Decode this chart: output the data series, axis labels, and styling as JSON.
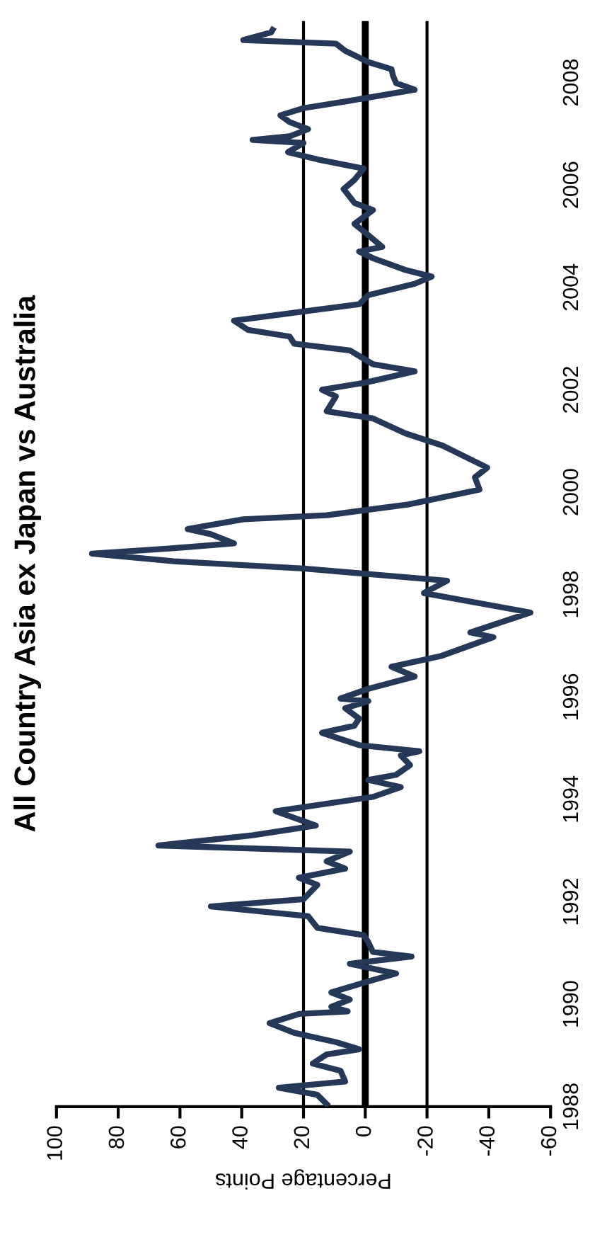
{
  "chart_data": {
    "type": "line",
    "title": "All Country Asia ex Japan vs Australia",
    "xlabel": "Percentage Points",
    "ylim": [
      1988,
      2009.2
    ],
    "yticks": [
      1988,
      1990,
      1992,
      1994,
      1996,
      1998,
      2000,
      2002,
      2004,
      2006,
      2008
    ],
    "xlim": [
      100,
      -60
    ],
    "xticks": [
      100,
      80,
      60,
      40,
      20,
      0,
      -20,
      -40,
      -60
    ],
    "grid": false,
    "marker": "none",
    "line_style": "solid",
    "ref_lines": [
      {
        "axis": "x",
        "value": 20,
        "color": "#000000"
      },
      {
        "axis": "x",
        "value": 0,
        "color": "#000000"
      },
      {
        "axis": "x",
        "value": -20,
        "color": "#000000"
      }
    ],
    "series": [
      {
        "color": "#253858",
        "values": [
          1988.05,
          1988.23,
          1988.37,
          1988.49,
          1988.7,
          1988.84,
          1989.02,
          1989.12,
          1989.26,
          1989.44,
          1989.63,
          1989.81,
          1989.86,
          1989.95,
          1990.09,
          1990.23,
          1990.42,
          1990.6,
          1990.79,
          1990.93,
          1991.02,
          1991.21,
          1991.35,
          1991.49,
          1991.72,
          1991.91,
          1992.05,
          1992.33,
          1992.47,
          1992.65,
          1992.79,
          1992.98,
          1993.1,
          1993.3,
          1993.49,
          1993.77,
          1994.05,
          1994.24,
          1994.38,
          1994.48,
          1994.67,
          1994.86,
          1994.94,
          1995.06,
          1995.3,
          1995.44,
          1995.58,
          1995.78,
          1995.92,
          1995.97,
          1996.16,
          1996.4,
          1996.59,
          1996.8,
          1997.17,
          1997.26,
          1997.65,
          1998.03,
          1998.27,
          1998.51,
          1998.65,
          1998.8,
          1998.9,
          1999.0,
          1999.18,
          1999.28,
          1999.47,
          1999.55,
          1999.76,
          2000.05,
          2000.29,
          2000.48,
          2000.91,
          2001.15,
          2001.44,
          2001.58,
          2001.87,
          2002.0,
          2002.14,
          2002.36,
          2002.5,
          2002.77,
          2002.9,
          2003.04,
          2003.17,
          2003.35,
          2003.53,
          2003.67,
          2003.85,
          2004.07,
          2004.21,
          2004.34,
          2004.57,
          2004.7,
          2004.79,
          2005.02,
          2005.24,
          2005.51,
          2005.65,
          2005.92,
          2006.1,
          2006.32,
          2006.5,
          2006.64,
          2006.82,
          2006.88,
          2006.95,
          2007.09,
          2007.23,
          2007.36,
          2007.5,
          2007.63,
          2007.86,
          2007.99,
          2008.13,
          2008.26,
          2008.4,
          2008.62,
          2008.76,
          2008.83,
          2008.98,
          2009.03
        ],
        "x": [
          12.5,
          15.5,
          28,
          6.5,
          8,
          17,
          12.5,
          2,
          9.5,
          23,
          31,
          21.5,
          5.7,
          11,
          5,
          11,
          0.5,
          -10,
          5,
          -15,
          -2.5,
          -1,
          0.5,
          15.5,
          18.5,
          50,
          20,
          15.5,
          21.5,
          6.5,
          12.5,
          5,
          67,
          36.5,
          16,
          29,
          -2.5,
          -11.5,
          -1,
          -10,
          -14.5,
          -11.5,
          -17.5,
          2,
          14,
          3.5,
          2,
          6.5,
          -1,
          8,
          -1,
          -16,
          -8.5,
          -24.5,
          -41.5,
          -34,
          -53.5,
          -19,
          -26.5,
          20,
          62,
          88.5,
          63.5,
          42.5,
          50,
          57.5,
          39.5,
          12.5,
          -14,
          -37,
          -35.5,
          -39.5,
          -25,
          -13,
          -2.5,
          12.5,
          9.5,
          14,
          0,
          -16,
          -2.5,
          5,
          23,
          24.5,
          38,
          42.5,
          20,
          2,
          -1,
          -16,
          -21.5,
          -13,
          -2.5,
          2,
          -5.5,
          -1,
          3.5,
          -2.5,
          3.5,
          7,
          3.5,
          0.5,
          15.5,
          25,
          20,
          36.5,
          24.5,
          18.5,
          24.5,
          27.5,
          20,
          6.5,
          -16,
          -10,
          -9,
          -8.5,
          -1,
          6.5,
          9.5,
          39.5,
          30.5,
          30
        ]
      }
    ]
  }
}
